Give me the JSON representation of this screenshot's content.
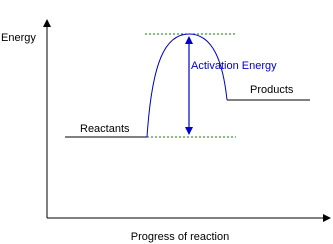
{
  "labels": {
    "y_axis": "Energy",
    "x_axis": "Progress of reaction",
    "reactants": "Reactants",
    "products": "Products",
    "activation": "Activation Energy"
  }
}
